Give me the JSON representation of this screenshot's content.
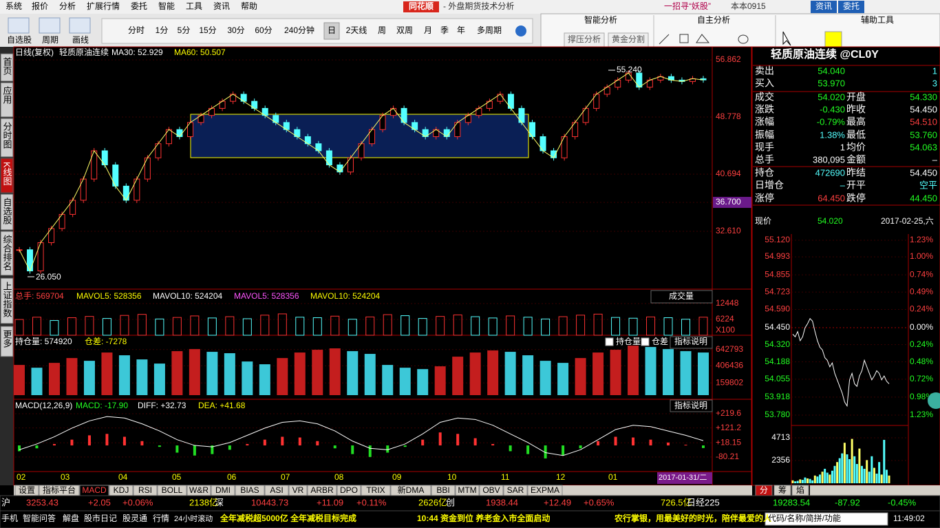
{
  "menu": [
    "系统",
    "报价",
    "分析",
    "扩展行情",
    "委托",
    "智能",
    "工具",
    "资讯",
    "帮助"
  ],
  "title_bar": {
    "logo": "同花顺",
    "title": "- 外盘期货技术分析",
    "promo": "一招寻“妖股”",
    "user": "本本0915",
    "buttons": [
      "资讯",
      "委托"
    ]
  },
  "toolbar": {
    "tools": [
      "自选股",
      "周期",
      "画线"
    ],
    "periods": [
      "分时",
      "1分",
      "5分",
      "15分",
      "30分",
      "60分",
      "240分钟",
      "日",
      "2天线",
      "周",
      "双周",
      "月",
      "季",
      "年",
      "多周期"
    ],
    "smart": "智能分析",
    "smart_buttons": [
      "撑压分析",
      "黄金分割"
    ],
    "self": "自主分析",
    "aux": "辅助工具"
  },
  "side_tabs": [
    "首页",
    "应用",
    "分时图",
    "K线图",
    "自选股",
    "综合排名",
    "上证指数",
    "更多"
  ],
  "kline": {
    "header": [
      "日线(复权)",
      "轻质原油连续",
      "MA30: 52.929",
      "MA60: 50.507"
    ],
    "marks": [
      "55.240",
      "26.050"
    ],
    "ylim": [
      24.62,
      57.54
    ],
    "yticks": [
      56.862,
      48.778,
      40.694,
      {
        "value": 36.7,
        "label": "36.700"
      },
      {
        "value": 32.61,
        "label": "32.610"
      }
    ],
    "closes": [
      30,
      27,
      31,
      33,
      35,
      37,
      40,
      44,
      42,
      39,
      37,
      40,
      43,
      45,
      47,
      46,
      48,
      49,
      50,
      51,
      52,
      51,
      50,
      49,
      48,
      47,
      46,
      45,
      44,
      42,
      41,
      43,
      45,
      47,
      49,
      50,
      48,
      47,
      46,
      47,
      46,
      48,
      49,
      50,
      51,
      52,
      50,
      48,
      46,
      44,
      43,
      46,
      48,
      50,
      52,
      53,
      54,
      55,
      53,
      54,
      54.5,
      54,
      53.8,
      54.2,
      54.02
    ],
    "x_labels": [
      "02",
      "03",
      "04",
      "05",
      "06",
      "07",
      "08",
      "09",
      "10",
      "11",
      "12",
      "01"
    ],
    "cursor_date": "2017-01-31/二"
  },
  "volume": {
    "header": [
      "总手: 569704",
      "MAVOL5: 528356",
      "MAVOL10: 524204",
      "MAVOL5: 528356",
      "MAVOL10: 524204"
    ],
    "selector": "成交量",
    "unit": "X100",
    "ylim": [
      0,
      12448
    ],
    "yticks": [
      12448,
      6224
    ],
    "values": [
      6200,
      7100,
      5800,
      6900,
      7400,
      6600,
      7800,
      8200,
      6400,
      7000,
      7600,
      6800,
      7300,
      6500,
      7900,
      8400,
      7100,
      6900,
      7500,
      6300,
      7200,
      8100,
      7700,
      6600,
      7400,
      8000,
      7300,
      6800,
      7600,
      7100,
      6400,
      7300,
      7900,
      8300,
      7000,
      6700,
      7200,
      6900,
      6300,
      7100
    ]
  },
  "open_interest": {
    "header": [
      "持仓量: 574920",
      "仓差: -7278"
    ],
    "checks": [
      "持仓量",
      "仓差"
    ],
    "help": "指标说明",
    "ylim": [
      -57000,
      820000
    ],
    "yticks": [
      642793,
      406436,
      159802
    ],
    "values": [
      420000,
      380000,
      450000,
      520000,
      480000,
      600000,
      560000,
      500000,
      440000,
      620000,
      650000,
      610000,
      590000,
      470000,
      430000,
      520000,
      600000,
      640000,
      660000,
      620000,
      580000,
      420000,
      380000,
      360000,
      400000,
      540000,
      600000,
      630000,
      610000,
      560000,
      480000,
      450000,
      520000,
      600000,
      640000,
      700000,
      680000,
      650000,
      620000,
      600000
    ]
  },
  "macd": {
    "header": [
      "MACD(12,26,9)",
      "MACD: -17.90",
      "DIFF: +32.73",
      "DEA: +41.68"
    ],
    "help": "指标说明",
    "ylim": [
      -181,
      296
    ],
    "yticks": [
      {
        "value": 219.6,
        "label": "+219.6"
      },
      {
        "value": 121.2,
        "label": "+121.2"
      },
      {
        "value": 18.15,
        "label": "+18.15"
      },
      -80.21
    ],
    "hist": [
      -40,
      -20,
      10,
      40,
      70,
      80,
      60,
      30,
      -10,
      -50,
      -70,
      -60,
      -30,
      10,
      40,
      60,
      55,
      30,
      -20,
      -60,
      -80,
      -50,
      -10,
      40,
      90,
      80,
      50,
      10,
      -40,
      -60,
      -90,
      -70,
      -20,
      30,
      60,
      55,
      40,
      20,
      5,
      -18
    ],
    "diff": [
      -30,
      10,
      60,
      120,
      170,
      200,
      190,
      150,
      100,
      40,
      0,
      -10,
      20,
      70,
      120,
      160,
      170,
      150,
      100,
      30,
      -20,
      -30,
      10,
      80,
      160,
      190,
      180,
      140,
      80,
      20,
      -50,
      -70,
      -30,
      40,
      110,
      140,
      130,
      100,
      70,
      33
    ]
  },
  "indicator_tabs": [
    "设置",
    "指标平台",
    "MACD",
    "KDJ",
    "RSI",
    "BOLL",
    "W&R",
    "DMI",
    "BIAS",
    "ASI",
    "VR",
    "ARBR",
    "DPO",
    "TRIX",
    "新DMA",
    "BBI",
    "MTM",
    "OBV",
    "SAR",
    "EXPMA"
  ],
  "quote": {
    "title": "轻质原油连续 @CL0Y",
    "rows": [
      {
        "label": "卖出",
        "value": "54.040",
        "qty": "1"
      },
      {
        "label": "买入",
        "value": "53.970",
        "qty": "3"
      },
      {
        "label": "成交",
        "value": "54.020",
        "label2": "开盘",
        "value2": "54.330"
      },
      {
        "label": "涨跌",
        "value": "-0.430",
        "label2": "昨收",
        "value2": "54.450"
      },
      {
        "label": "涨幅",
        "value": "-0.79%",
        "label2": "最高",
        "value2": "54.510"
      },
      {
        "label": "振幅",
        "value": "1.38%",
        "label2": "最低",
        "value2": "53.760"
      },
      {
        "label": "现手",
        "value": "1",
        "label2": "均价",
        "value2": "54.063"
      },
      {
        "label": "总手",
        "value": "380,095",
        "label2": "金额",
        "value2": "–"
      },
      {
        "label": "持仓",
        "value": "472690",
        "label2": "昨结",
        "value2": "54.450"
      },
      {
        "label": "日增仓",
        "value": "–",
        "label2": "开平",
        "value2": "空平"
      },
      {
        "label": "涨停",
        "value": "64.450",
        "label2": "跌停",
        "value2": "44.450"
      }
    ]
  },
  "intraday": {
    "header": [
      "现价",
      "54.020",
      "2017-02-25,六"
    ],
    "ylim": [
      53.78,
      55.12
    ],
    "yticks": [
      {
        "value": 55.12,
        "label": "55.120"
      },
      54.993,
      54.855,
      54.723,
      {
        "value": 54.59,
        "label": "54.590"
      },
      {
        "value": 54.45,
        "label": "54.450"
      },
      {
        "value": 54.32,
        "label": "54.320"
      },
      54.188,
      54.055,
      53.918,
      {
        "value": 53.78,
        "label": "53.780"
      }
    ],
    "pct_labels": [
      "1.23%",
      "1.00%",
      "0.74%",
      "0.49%",
      "0.24%",
      "0.00%",
      "0.24%",
      "0.48%",
      "0.72%",
      "0.98%",
      "1.23%"
    ],
    "prices": [
      54.4,
      54.38,
      54.42,
      54.35,
      54.38,
      54.45,
      54.48,
      54.52,
      54.5,
      54.42,
      54.35,
      54.3,
      54.28,
      54.22,
      54.2,
      54.15,
      54.18,
      54.1,
      54.05,
      54.0,
      53.95,
      53.88,
      53.85,
      54.05,
      54.1,
      54.02,
      54.0,
      54.08,
      54.12,
      54.2,
      54.15,
      54.1,
      54.05,
      54.08,
      54.12,
      54.1,
      54.05,
      54.08,
      54.04,
      54.02
    ],
    "vol_ylim": [
      0,
      4713
    ],
    "vol_yticks": [
      4713,
      2356
    ],
    "volumes": [
      300,
      200,
      250,
      400,
      350,
      600,
      500,
      450,
      300,
      800,
      700,
      900,
      1200,
      1500,
      1100,
      900,
      1300,
      1800,
      2200,
      2600,
      3100,
      4200,
      3000,
      2500,
      4600,
      2800,
      2000,
      3600,
      1800,
      1500,
      2400,
      1200,
      2800,
      1600,
      1000,
      2200,
      900,
      4500,
      1400,
      800
    ],
    "tabs": [
      "分",
      "筹",
      "焰"
    ]
  },
  "status": {
    "row1": [
      "沪",
      "3253.43",
      "+2.05",
      "+0.06%",
      "2138亿",
      "深",
      "10443.73",
      "+11.09",
      "+0.11%",
      "2626亿",
      "创",
      "1938.44",
      "+12.49",
      "+0.65%",
      "726.5亿",
      "日经225",
      "19283.54",
      "-87.92",
      "-0.45%"
    ],
    "row2": [
      "手机",
      "智能问答",
      "解盘",
      "股市日记",
      "股灵通",
      "行情",
      "24小时滚动",
      "全年减税超5000亿 全年减税目标完成",
      "10:44 资金到位 养老金入市全面启动",
      "农行掌银，用最美好的时光，陪伴最爱的人",
      "代码/名称/简拼/功能",
      "11:49:02"
    ]
  }
}
